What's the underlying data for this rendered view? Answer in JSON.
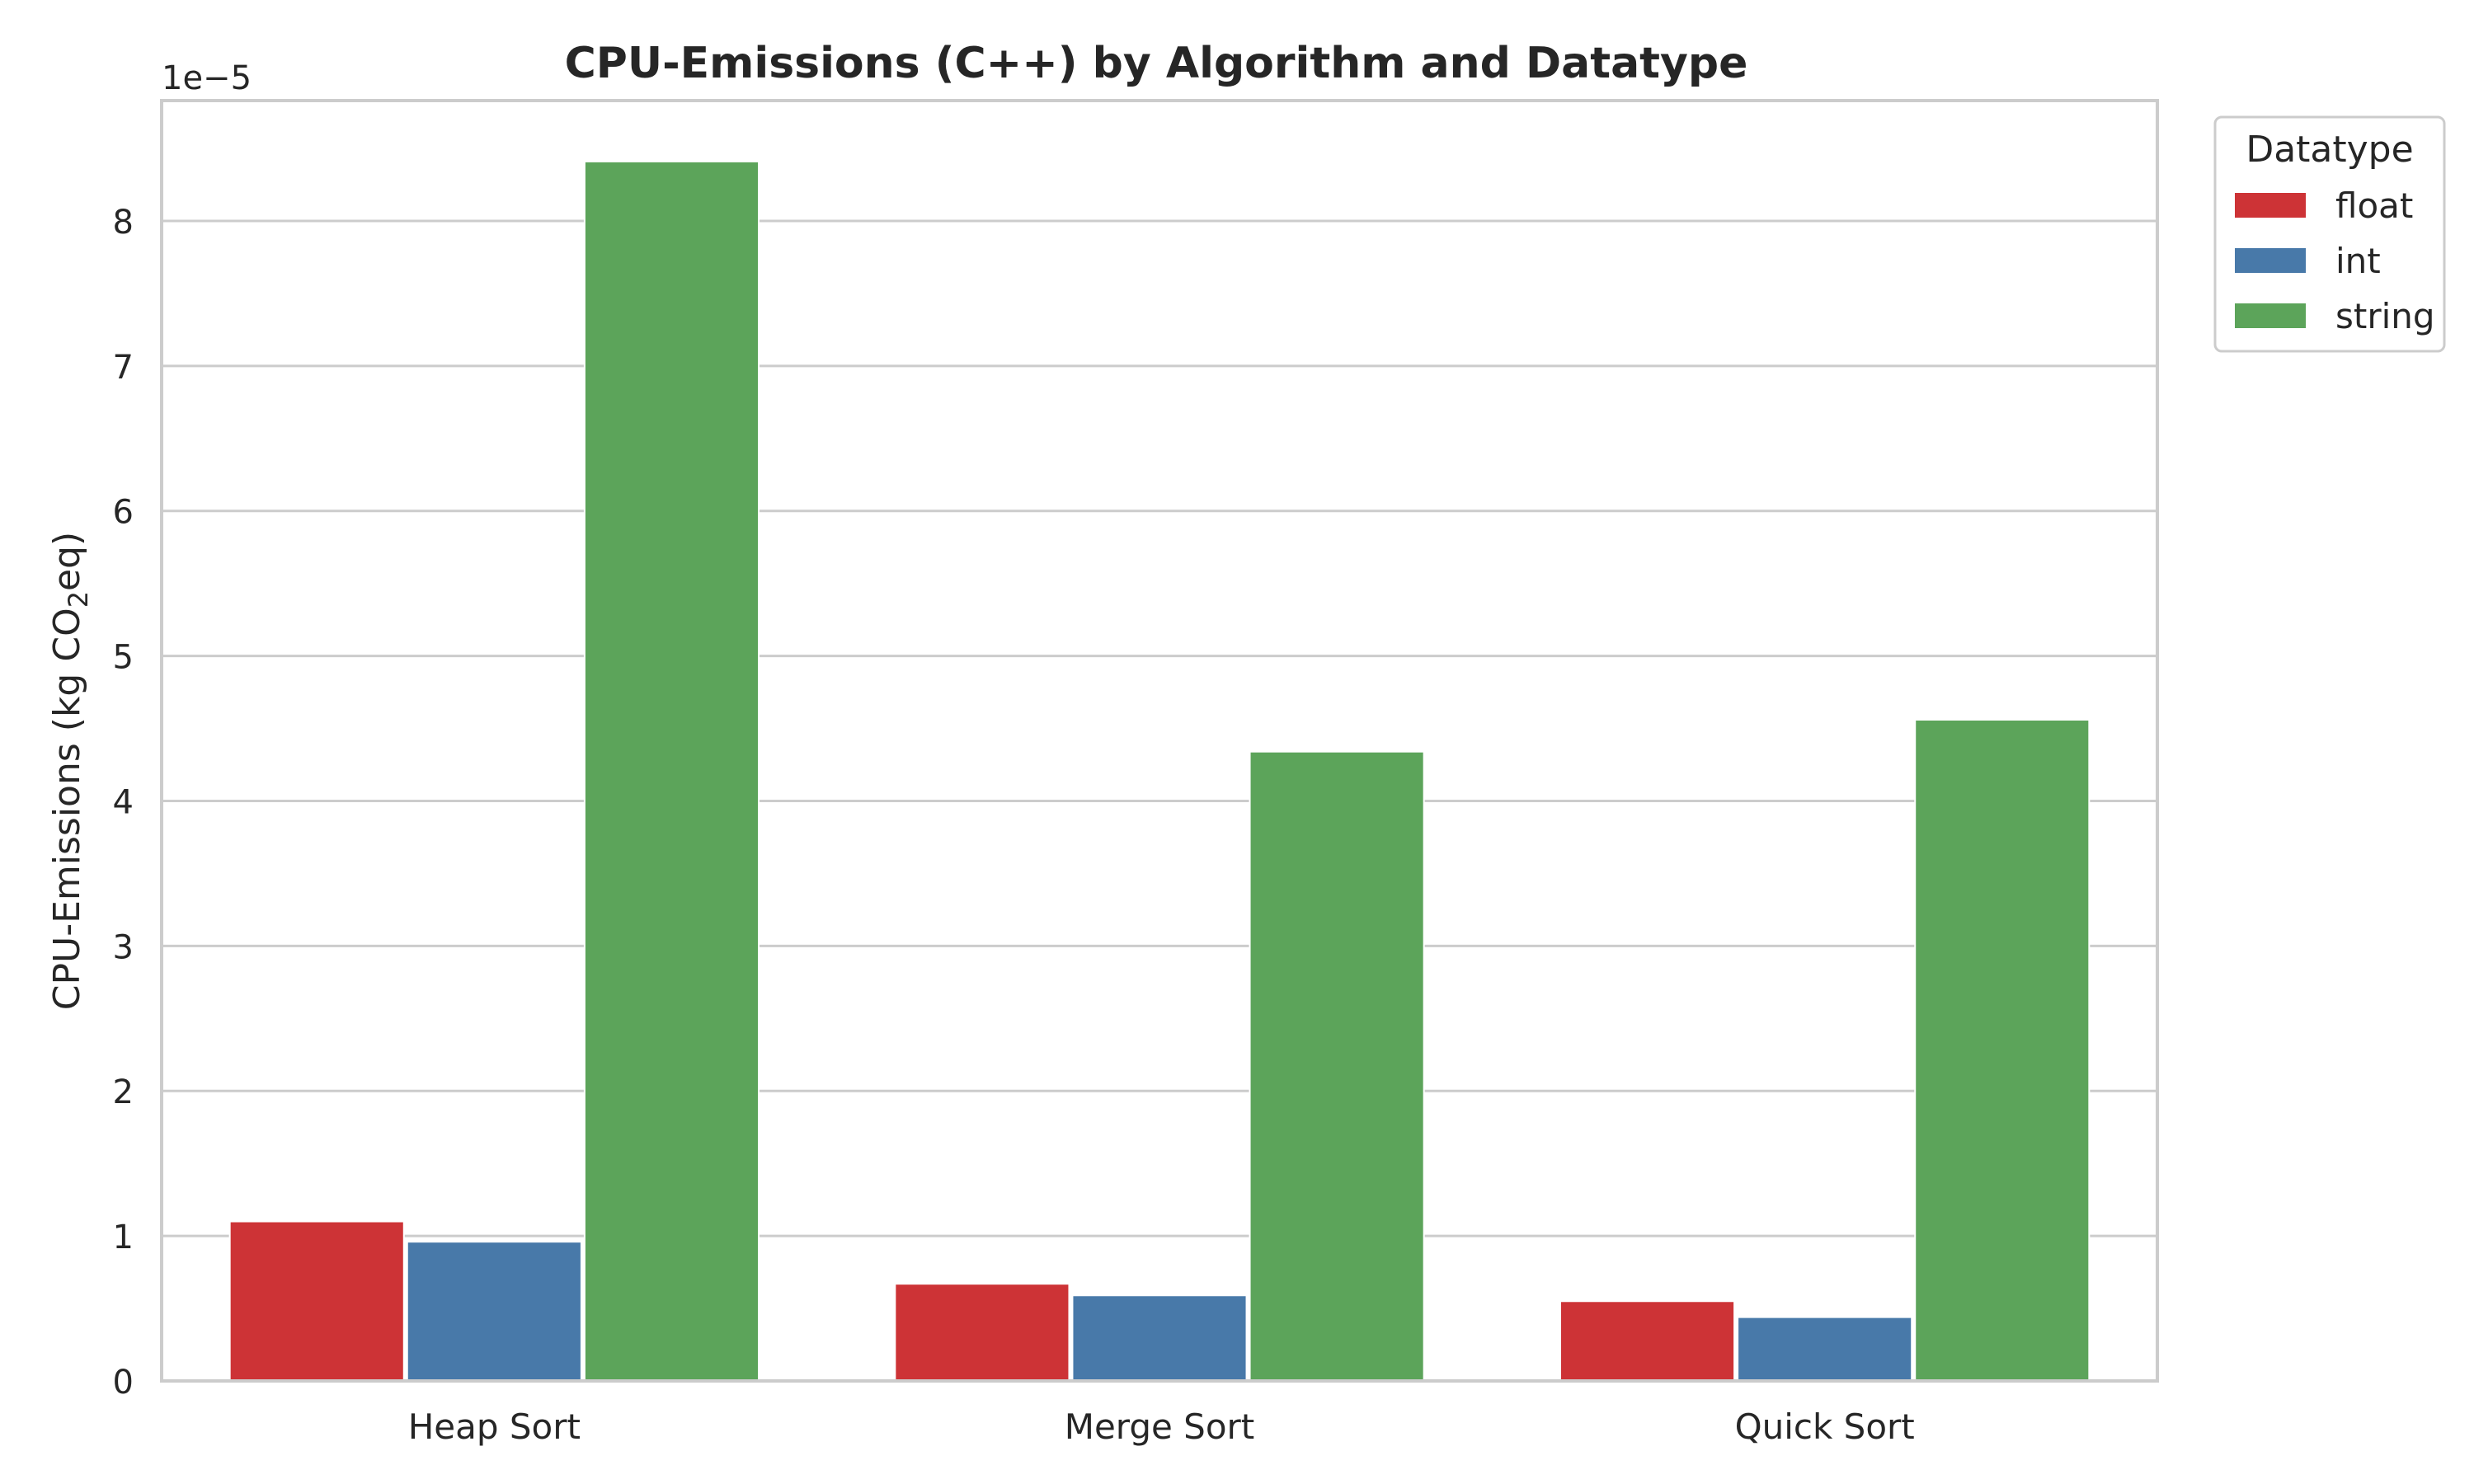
{
  "chart_data": {
    "type": "bar",
    "title": "CPU-Emissions (C++) by Algorithm and Datatype",
    "xlabel": "",
    "ylabel_main": "CPU-Emissions (kg CO",
    "ylabel_sub": "2",
    "ylabel_tail": "eq)",
    "offset_label": "1e−5",
    "ylim": [
      0,
      8.83
    ],
    "yticks": [
      "0",
      "1",
      "2",
      "3",
      "4",
      "5",
      "6",
      "7",
      "8"
    ],
    "categories": [
      "Heap Sort",
      "Merge Sort",
      "Quick Sort"
    ],
    "legend": {
      "title": "Datatype",
      "placement": "upper right, outside plot"
    },
    "grid": "horizontal",
    "series": [
      {
        "name": "float",
        "color": "#cd3336",
        "values": [
          1.1,
          0.67,
          0.55
        ]
      },
      {
        "name": "int",
        "color": "#4879a9",
        "values": [
          0.96,
          0.59,
          0.44
        ]
      },
      {
        "name": "string",
        "color": "#5ca45a",
        "values": [
          8.41,
          4.34,
          4.56
        ]
      }
    ]
  }
}
